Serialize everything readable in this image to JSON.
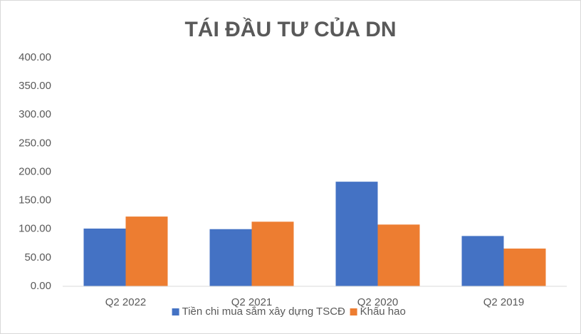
{
  "chart_data": {
    "type": "bar",
    "title": "TÁI ĐẦU TƯ CỦA DN",
    "categories": [
      "Q2 2022",
      "Q2 2021",
      "Q2 2020",
      "Q2 2019"
    ],
    "series": [
      {
        "name": "Tiền chi mua sắm xây dựng TSCĐ",
        "color": "#4472c4",
        "values": [
          101,
          100,
          183,
          88
        ]
      },
      {
        "name": "Khấu hao",
        "color": "#ed7d31",
        "values": [
          122,
          113,
          108,
          66
        ]
      }
    ],
    "ylim": [
      0,
      400
    ],
    "yticks": [
      {
        "value": 0,
        "label": "0.00"
      },
      {
        "value": 50,
        "label": "50.00"
      },
      {
        "value": 100,
        "label": "100.00"
      },
      {
        "value": 150,
        "label": "150.00"
      },
      {
        "value": 200,
        "label": "200.00"
      },
      {
        "value": 250,
        "label": "250.00"
      },
      {
        "value": 300,
        "label": "300.00"
      },
      {
        "value": 350,
        "label": "350.00"
      },
      {
        "value": 400,
        "label": "400.00"
      }
    ],
    "grid": false,
    "legend": "bottom"
  }
}
